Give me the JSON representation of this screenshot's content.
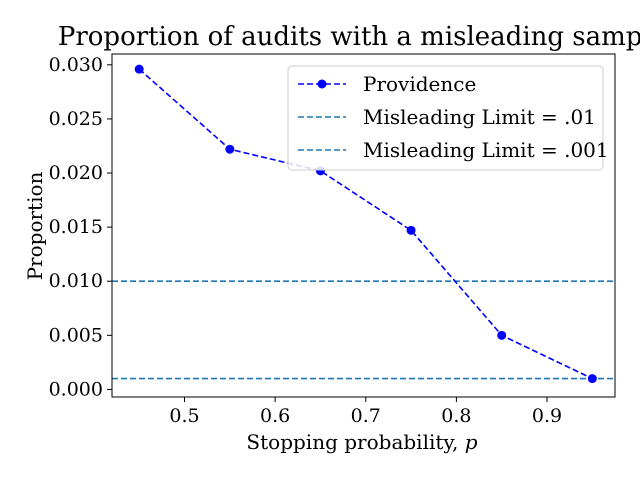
{
  "chart_data": {
    "type": "line",
    "title": "Proportion of audits with a misleading sample",
    "xlabel": "Stopping probability, ",
    "xlabel_var": "p",
    "ylabel": "Proportion",
    "xlim": [
      0.42,
      0.975
    ],
    "ylim": [
      -0.0007,
      0.031
    ],
    "x_ticks": [
      "0.5",
      "0.6",
      "0.7",
      "0.8",
      "0.9"
    ],
    "x_tick_values": [
      0.5,
      0.6,
      0.7,
      0.8,
      0.9
    ],
    "y_ticks": [
      "0.000",
      "0.005",
      "0.010",
      "0.015",
      "0.020",
      "0.025",
      "0.030"
    ],
    "y_tick_values": [
      0.0,
      0.005,
      0.01,
      0.015,
      0.02,
      0.025,
      0.03
    ],
    "grid": false,
    "legend_position": "top-right",
    "series": [
      {
        "name": "Providence",
        "x": [
          0.45,
          0.55,
          0.65,
          0.75,
          0.85,
          0.95
        ],
        "y": [
          0.0296,
          0.0222,
          0.0202,
          0.0147,
          0.005,
          0.001
        ],
        "color": "#0000ff",
        "style": "dashed-with-markers"
      }
    ],
    "reference_lines": [
      {
        "name": "Misleading Limit = .01",
        "y": 0.01,
        "color": "#1f77b4"
      },
      {
        "name": "Misleading Limit = .001",
        "y": 0.001,
        "color": "#1f77b4"
      }
    ]
  }
}
